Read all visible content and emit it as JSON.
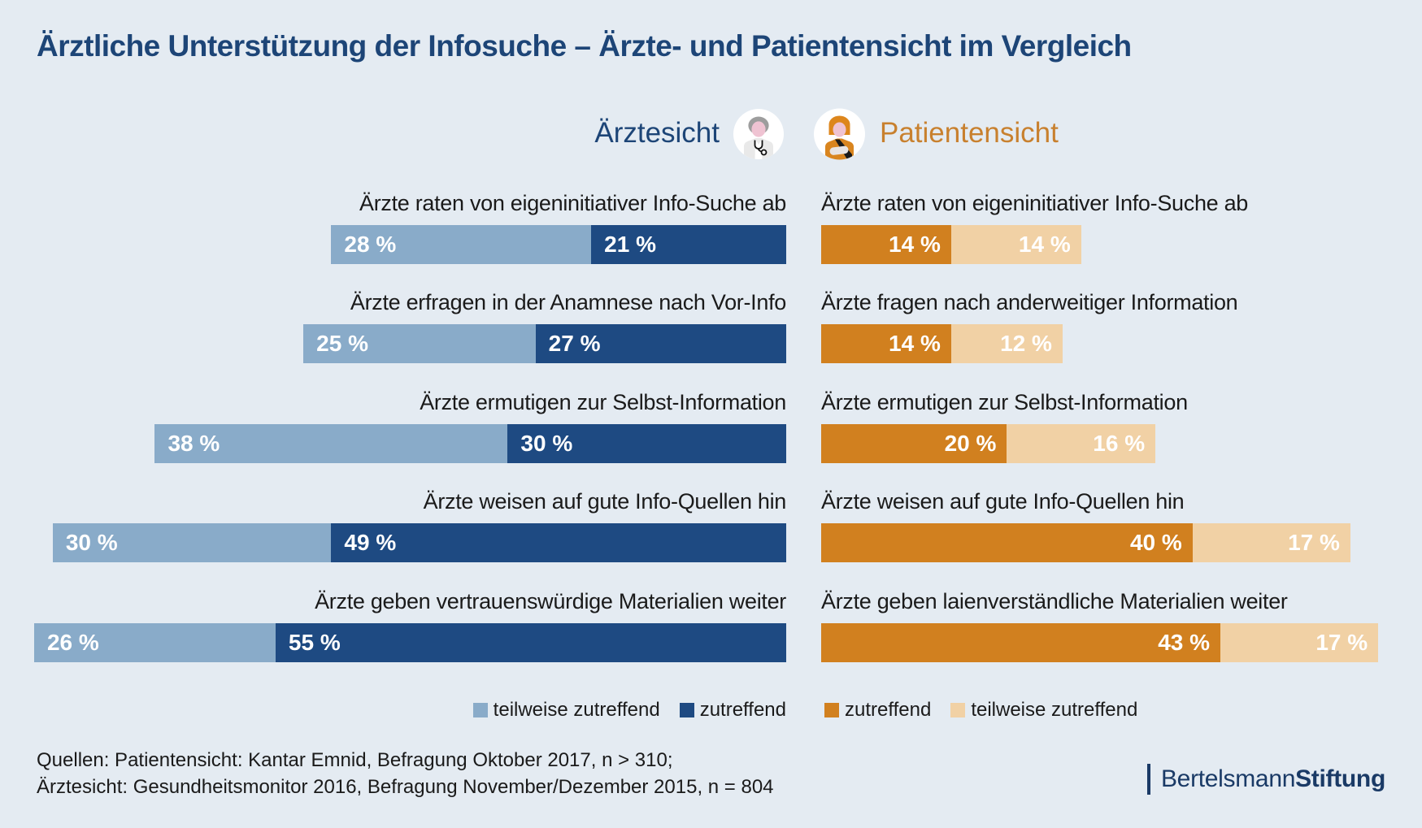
{
  "title": "Ärztliche Unterstützung der Infosuche – Ärzte- und Patientensicht im Vergleich",
  "colors": {
    "background": "#e4ebf2",
    "title_blue": "#1d4577",
    "header_orange": "#c8802e",
    "bar_light_blue": "#89abc9",
    "bar_dark_blue": "#1e4a82",
    "bar_dark_orange": "#d1801f",
    "bar_light_orange": "#f1d1a5",
    "text_dark": "#1a1a1a",
    "logo_blue": "#1a3a66",
    "value_text": "#ffffff"
  },
  "icons": [
    "doctor-avatar-icon",
    "patient-avatar-icon"
  ],
  "chart_data": {
    "type": "bar",
    "orientation": "horizontal",
    "unit": "%",
    "panels": [
      {
        "id": "aerztesicht",
        "title": "Ärztesicht",
        "align": "right",
        "series_order": [
          "teilweise zutreffend",
          "zutreffend"
        ],
        "colors": [
          "#89abc9",
          "#1e4a82"
        ],
        "rows": [
          {
            "label": "Ärzte raten von eigeninitiativer Info-Suche ab",
            "values": [
              28,
              21
            ],
            "value_labels": [
              "28 %",
              "21 %"
            ]
          },
          {
            "label": "Ärzte erfragen in der Anamnese nach Vor-Info",
            "values": [
              25,
              27
            ],
            "value_labels": [
              "25 %",
              "27 %"
            ]
          },
          {
            "label": "Ärzte ermutigen zur Selbst-Information",
            "values": [
              38,
              30
            ],
            "value_labels": [
              "38 %",
              "30 %"
            ]
          },
          {
            "label": "Ärzte weisen auf gute Info-Quellen hin",
            "values": [
              30,
              49
            ],
            "value_labels": [
              "30 %",
              "49 %"
            ]
          },
          {
            "label": "Ärzte geben vertrauenswürdige Materialien weiter",
            "values": [
              26,
              55
            ],
            "value_labels": [
              "26 %",
              "55 %"
            ]
          }
        ],
        "legend": [
          {
            "label": "teilweise zutreffend",
            "color": "#89abc9"
          },
          {
            "label": "zutreffend",
            "color": "#1e4a82"
          }
        ]
      },
      {
        "id": "patientensicht",
        "title": "Patientensicht",
        "align": "left",
        "series_order": [
          "zutreffend",
          "teilweise zutreffend"
        ],
        "colors": [
          "#d1801f",
          "#f1d1a5"
        ],
        "rows": [
          {
            "label": "Ärzte raten von eigeninitiativer Info-Suche ab",
            "values": [
              14,
              14
            ],
            "value_labels": [
              "14 %",
              "14 %"
            ]
          },
          {
            "label": "Ärzte fragen nach anderweitiger Information",
            "values": [
              14,
              12
            ],
            "value_labels": [
              "14 %",
              "12 %"
            ]
          },
          {
            "label": "Ärzte ermutigen zur Selbst-Information",
            "values": [
              20,
              16
            ],
            "value_labels": [
              "20 %",
              "16 %"
            ]
          },
          {
            "label": "Ärzte weisen auf gute Info-Quellen hin",
            "values": [
              40,
              17
            ],
            "value_labels": [
              "40 %",
              "17 %"
            ]
          },
          {
            "label": "Ärzte geben laienverständliche Materialien weiter",
            "values": [
              43,
              17
            ],
            "value_labels": [
              "43 %",
              "17 %"
            ]
          }
        ],
        "legend": [
          {
            "label": "zutreffend",
            "color": "#d1801f"
          },
          {
            "label": "teilweise zutreffend",
            "color": "#f1d1a5"
          }
        ]
      }
    ]
  },
  "sources": {
    "line1": "Quellen: Patientensicht: Kantar Emnid, Befragung Oktober 2017, n > 310;",
    "line2": "Ärztesicht: Gesundheitsmonitor 2016, Befragung November/Dezember 2015, n = 804"
  },
  "logo": {
    "part1": "Bertelsmann",
    "part2": "Stiftung"
  }
}
